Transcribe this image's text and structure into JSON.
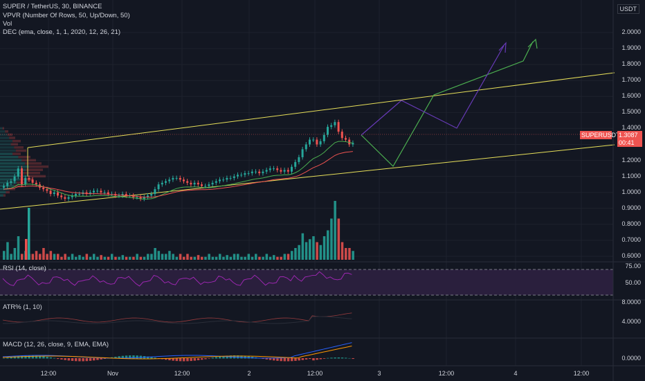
{
  "header": {
    "symbol_line": "SUPER / TetherUS, 30, BINANCE",
    "indicators": [
      "VPVR (Number Of Rows, 50, Up/Down, 50)",
      "Vol",
      "DEC (ema, close, 1, 1, 2020, 12, 26, 21)"
    ]
  },
  "currency_label": "USDT",
  "price_axis": [
    "2.0000",
    "1.9000",
    "1.8000",
    "1.7000",
    "1.6000",
    "1.5000",
    "1.4000",
    "1.3000",
    "1.2000",
    "1.1000",
    "1.0000",
    "0.9000",
    "0.8000",
    "0.7000",
    "0.6000"
  ],
  "current_price": {
    "symbol": "SUPERUSDT",
    "price": "1.3087",
    "countdown": "00:41",
    "color": "#ef5350"
  },
  "rsi": {
    "label": "RSI (14, close)",
    "ticks": [
      "75.00",
      "50.00"
    ],
    "line_color": "#9c27b0",
    "band_color": "#2a1f3d"
  },
  "atr": {
    "label": "ATR% (1, 10)",
    "ticks": [
      "8.0000",
      "4.0000"
    ]
  },
  "macd": {
    "label": "MACD (12, 26, close, 9, EMA, EMA)",
    "ticks": [
      "0.0000"
    ]
  },
  "time_axis": [
    "12:00",
    "Nov",
    "12:00",
    "2",
    "12:00",
    "3",
    "12:00",
    "4",
    "12:00"
  ],
  "colors": {
    "up": "#26a69a",
    "down": "#ef5350",
    "channel": "#e8e05a",
    "proj_green": "#4caf50",
    "proj_purple": "#673ab7",
    "bg": "#131722"
  },
  "chart_data": {
    "type": "candlestick",
    "y_axis_range": [
      0.6,
      2.0
    ],
    "close_prices": [
      1.04,
      1.06,
      1.07,
      1.1,
      1.15,
      1.05,
      1.09,
      1.08,
      1.06,
      1.05,
      1.03,
      1.02,
      1.01,
      0.99,
      1.0,
      0.98,
      0.97,
      0.96,
      0.97,
      0.98,
      0.99,
      0.99,
      1.0,
      0.99,
      1.0,
      1.01,
      1.01,
      1.0,
      1.0,
      0.99,
      0.99,
      0.98,
      0.98,
      0.99,
      0.98,
      0.98,
      0.97,
      0.97,
      0.96,
      0.97,
      0.98,
      0.99,
      1.02,
      1.05,
      1.06,
      1.07,
      1.08,
      1.09,
      1.09,
      1.08,
      1.07,
      1.06,
      1.05,
      1.06,
      1.05,
      1.04,
      1.04,
      1.05,
      1.06,
      1.07,
      1.08,
      1.08,
      1.09,
      1.09,
      1.1,
      1.11,
      1.11,
      1.12,
      1.12,
      1.13,
      1.13,
      1.12,
      1.13,
      1.14,
      1.15,
      1.15,
      1.14,
      1.13,
      1.14,
      1.13,
      1.16,
      1.19,
      1.22,
      1.27,
      1.3,
      1.33,
      1.33,
      1.3,
      1.32,
      1.36,
      1.41,
      1.42,
      1.44,
      1.38,
      1.34,
      1.33,
      1.3,
      1.31
    ],
    "volume_relative": [
      0.15,
      0.3,
      0.1,
      0.2,
      0.4,
      0.1,
      0.15,
      0.1,
      0.1,
      0.15,
      0.1,
      0.2,
      0.1,
      0.15,
      0.1,
      0.1,
      0.05,
      0.1,
      0.05,
      0.1,
      0.05,
      0.08,
      0.05,
      0.1,
      0.05,
      0.1,
      0.05,
      0.08,
      0.05,
      0.05,
      0.1,
      0.05,
      0.05,
      0.08,
      0.05,
      0.05,
      0.05,
      0.1,
      0.05,
      0.05,
      0.1,
      0.1,
      0.2,
      0.15,
      0.1,
      0.1,
      0.15,
      0.1,
      0.05,
      0.1,
      0.05,
      0.1,
      0.05,
      0.05,
      0.08,
      0.05,
      0.05,
      0.1,
      0.05,
      0.05,
      0.1,
      0.05,
      0.08,
      0.05,
      0.1,
      0.1,
      0.05,
      0.05,
      0.1,
      0.05,
      0.1,
      0.05,
      0.05,
      0.1,
      0.05,
      0.08,
      0.05,
      0.05,
      0.1,
      0.1,
      0.15,
      0.2,
      0.25,
      0.45,
      0.3,
      0.35,
      0.4,
      0.3,
      0.25,
      0.4,
      0.5,
      0.7,
      1.0,
      0.7,
      0.3,
      0.2,
      0.2,
      0.15
    ]
  }
}
